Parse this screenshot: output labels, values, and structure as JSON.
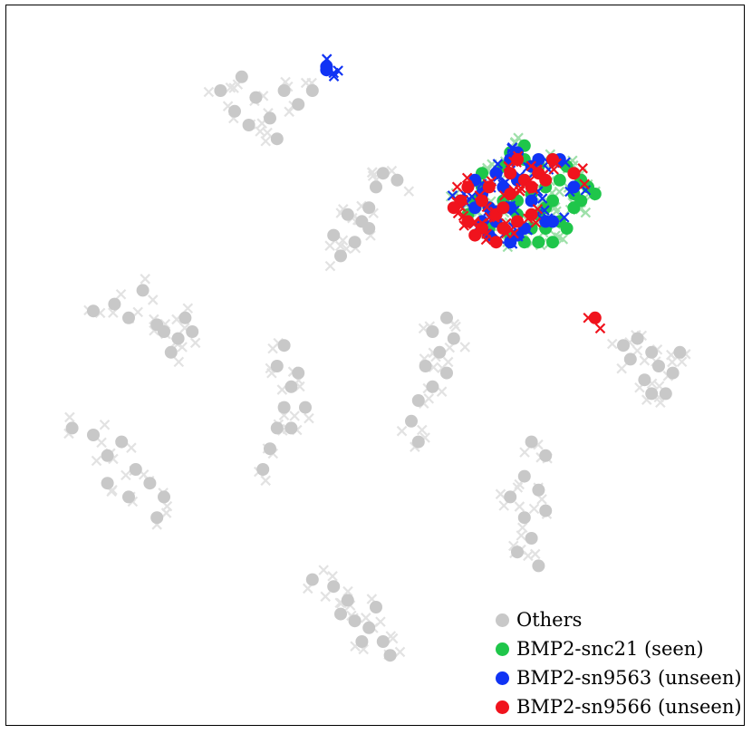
{
  "chart_data": {
    "type": "scatter",
    "title": "",
    "xlabel": "",
    "ylabel": "",
    "xlim": [
      0,
      100
    ],
    "ylim": [
      0,
      100
    ],
    "axes_visible": false,
    "grid": false,
    "legend_position": "bottom-right",
    "series": [
      {
        "name": "Others",
        "color": "#c8c8c8",
        "cross_color": "#e2e2e2",
        "values": [
          {
            "x": 28,
            "y": 90
          },
          {
            "x": 31,
            "y": 92
          },
          {
            "x": 33,
            "y": 89
          },
          {
            "x": 37,
            "y": 90
          },
          {
            "x": 35,
            "y": 86
          },
          {
            "x": 32,
            "y": 85
          },
          {
            "x": 30,
            "y": 87
          },
          {
            "x": 39,
            "y": 88
          },
          {
            "x": 41,
            "y": 90
          },
          {
            "x": 36,
            "y": 83
          },
          {
            "x": 50,
            "y": 76
          },
          {
            "x": 49,
            "y": 73
          },
          {
            "x": 48,
            "y": 71
          },
          {
            "x": 47,
            "y": 68
          },
          {
            "x": 45,
            "y": 66
          },
          {
            "x": 44,
            "y": 69
          },
          {
            "x": 51,
            "y": 78
          },
          {
            "x": 53,
            "y": 77
          },
          {
            "x": 46,
            "y": 72
          },
          {
            "x": 49,
            "y": 70
          },
          {
            "x": 13,
            "y": 59
          },
          {
            "x": 17,
            "y": 61
          },
          {
            "x": 15,
            "y": 57
          },
          {
            "x": 20,
            "y": 55
          },
          {
            "x": 22,
            "y": 54
          },
          {
            "x": 24,
            "y": 55
          },
          {
            "x": 21,
            "y": 52
          },
          {
            "x": 23,
            "y": 57
          },
          {
            "x": 10,
            "y": 58
          },
          {
            "x": 19,
            "y": 56
          },
          {
            "x": 36,
            "y": 50
          },
          {
            "x": 38,
            "y": 47
          },
          {
            "x": 37,
            "y": 44
          },
          {
            "x": 36,
            "y": 41
          },
          {
            "x": 35,
            "y": 38
          },
          {
            "x": 38,
            "y": 41
          },
          {
            "x": 40,
            "y": 44
          },
          {
            "x": 34,
            "y": 35
          },
          {
            "x": 37,
            "y": 53
          },
          {
            "x": 39,
            "y": 49
          },
          {
            "x": 58,
            "y": 55
          },
          {
            "x": 59,
            "y": 52
          },
          {
            "x": 60,
            "y": 49
          },
          {
            "x": 58,
            "y": 47
          },
          {
            "x": 56,
            "y": 45
          },
          {
            "x": 55,
            "y": 42
          },
          {
            "x": 56,
            "y": 39
          },
          {
            "x": 60,
            "y": 57
          },
          {
            "x": 61,
            "y": 54
          },
          {
            "x": 57,
            "y": 50
          },
          {
            "x": 87,
            "y": 54
          },
          {
            "x": 89,
            "y": 52
          },
          {
            "x": 86,
            "y": 51
          },
          {
            "x": 90,
            "y": 50
          },
          {
            "x": 92,
            "y": 49
          },
          {
            "x": 88,
            "y": 48
          },
          {
            "x": 91,
            "y": 46
          },
          {
            "x": 93,
            "y": 52
          },
          {
            "x": 85,
            "y": 53
          },
          {
            "x": 89,
            "y": 46
          },
          {
            "x": 7,
            "y": 41
          },
          {
            "x": 10,
            "y": 40
          },
          {
            "x": 12,
            "y": 37
          },
          {
            "x": 14,
            "y": 39
          },
          {
            "x": 16,
            "y": 35
          },
          {
            "x": 18,
            "y": 33
          },
          {
            "x": 20,
            "y": 31
          },
          {
            "x": 12,
            "y": 33
          },
          {
            "x": 15,
            "y": 31
          },
          {
            "x": 19,
            "y": 28
          },
          {
            "x": 72,
            "y": 39
          },
          {
            "x": 74,
            "y": 37
          },
          {
            "x": 71,
            "y": 34
          },
          {
            "x": 73,
            "y": 32
          },
          {
            "x": 69,
            "y": 31
          },
          {
            "x": 71,
            "y": 28
          },
          {
            "x": 72,
            "y": 25
          },
          {
            "x": 73,
            "y": 21
          },
          {
            "x": 70,
            "y": 23
          },
          {
            "x": 74,
            "y": 29
          },
          {
            "x": 41,
            "y": 19
          },
          {
            "x": 44,
            "y": 18
          },
          {
            "x": 46,
            "y": 16
          },
          {
            "x": 47,
            "y": 13
          },
          {
            "x": 49,
            "y": 12
          },
          {
            "x": 51,
            "y": 10
          },
          {
            "x": 52,
            "y": 8
          },
          {
            "x": 48,
            "y": 10
          },
          {
            "x": 45,
            "y": 14
          },
          {
            "x": 50,
            "y": 15
          }
        ]
      },
      {
        "name": "BMP2-snc21 (seen)",
        "color": "#1fc64a",
        "cross_color": "#9ee0a9",
        "values": [
          {
            "x": 71,
            "y": 80
          },
          {
            "x": 73,
            "y": 79
          },
          {
            "x": 75,
            "y": 80
          },
          {
            "x": 77,
            "y": 79
          },
          {
            "x": 79,
            "y": 77
          },
          {
            "x": 80,
            "y": 76
          },
          {
            "x": 76,
            "y": 77
          },
          {
            "x": 74,
            "y": 76
          },
          {
            "x": 72,
            "y": 75
          },
          {
            "x": 70,
            "y": 77
          },
          {
            "x": 68,
            "y": 74
          },
          {
            "x": 66,
            "y": 73
          },
          {
            "x": 67,
            "y": 71
          },
          {
            "x": 70,
            "y": 72
          },
          {
            "x": 73,
            "y": 72
          },
          {
            "x": 75,
            "y": 74
          },
          {
            "x": 78,
            "y": 73
          },
          {
            "x": 76,
            "y": 71
          },
          {
            "x": 74,
            "y": 70
          },
          {
            "x": 72,
            "y": 70
          },
          {
            "x": 69,
            "y": 69
          },
          {
            "x": 71,
            "y": 68
          },
          {
            "x": 66,
            "y": 70
          },
          {
            "x": 64,
            "y": 74
          },
          {
            "x": 65,
            "y": 76
          },
          {
            "x": 67,
            "y": 78
          },
          {
            "x": 69,
            "y": 81
          },
          {
            "x": 71,
            "y": 82
          },
          {
            "x": 78,
            "y": 75
          },
          {
            "x": 81,
            "y": 75
          },
          {
            "x": 77,
            "y": 70
          },
          {
            "x": 75,
            "y": 68
          },
          {
            "x": 73,
            "y": 68
          },
          {
            "x": 63,
            "y": 72
          },
          {
            "x": 62,
            "y": 74
          },
          {
            "x": 65,
            "y": 78
          },
          {
            "x": 68,
            "y": 79
          },
          {
            "x": 70,
            "y": 74
          },
          {
            "x": 79,
            "y": 74
          },
          {
            "x": 74,
            "y": 73
          }
        ]
      },
      {
        "name": "BMP2-sn9563 (unseen)",
        "color": "#1033f4",
        "cross_color": "#1033f4",
        "values": [
          {
            "x": 43,
            "y": 93
          },
          {
            "x": 43,
            "y": 93.5
          },
          {
            "x": 70,
            "y": 81
          },
          {
            "x": 69,
            "y": 80
          },
          {
            "x": 72,
            "y": 79
          },
          {
            "x": 67,
            "y": 78
          },
          {
            "x": 64,
            "y": 77
          },
          {
            "x": 65,
            "y": 75
          },
          {
            "x": 68,
            "y": 76
          },
          {
            "x": 70,
            "y": 77
          },
          {
            "x": 66,
            "y": 73
          },
          {
            "x": 64,
            "y": 73
          },
          {
            "x": 69,
            "y": 73
          },
          {
            "x": 71,
            "y": 70
          },
          {
            "x": 74,
            "y": 71
          },
          {
            "x": 67,
            "y": 71
          },
          {
            "x": 73,
            "y": 80
          },
          {
            "x": 76,
            "y": 80
          },
          {
            "x": 78,
            "y": 76
          },
          {
            "x": 70,
            "y": 69
          },
          {
            "x": 65,
            "y": 71
          },
          {
            "x": 62,
            "y": 74
          },
          {
            "x": 66,
            "y": 69
          },
          {
            "x": 69,
            "y": 68
          },
          {
            "x": 72,
            "y": 74
          },
          {
            "x": 75,
            "y": 71
          }
        ]
      },
      {
        "name": "BMP2-sn9566 (unseen)",
        "color": "#f0131d",
        "cross_color": "#f0131d",
        "values": [
          {
            "x": 81,
            "y": 57
          },
          {
            "x": 63,
            "y": 76
          },
          {
            "x": 62,
            "y": 74
          },
          {
            "x": 63,
            "y": 71
          },
          {
            "x": 65,
            "y": 70
          },
          {
            "x": 67,
            "y": 72
          },
          {
            "x": 69,
            "y": 75
          },
          {
            "x": 71,
            "y": 77
          },
          {
            "x": 73,
            "y": 78
          },
          {
            "x": 75,
            "y": 80
          },
          {
            "x": 66,
            "y": 76
          },
          {
            "x": 68,
            "y": 73
          },
          {
            "x": 70,
            "y": 71
          },
          {
            "x": 64,
            "y": 69
          },
          {
            "x": 67,
            "y": 68
          },
          {
            "x": 72,
            "y": 76
          },
          {
            "x": 74,
            "y": 77
          },
          {
            "x": 78,
            "y": 78
          },
          {
            "x": 69,
            "y": 78
          },
          {
            "x": 65,
            "y": 74
          },
          {
            "x": 61,
            "y": 73
          },
          {
            "x": 70,
            "y": 80
          },
          {
            "x": 72,
            "y": 72
          },
          {
            "x": 68,
            "y": 70
          }
        ]
      }
    ]
  }
}
